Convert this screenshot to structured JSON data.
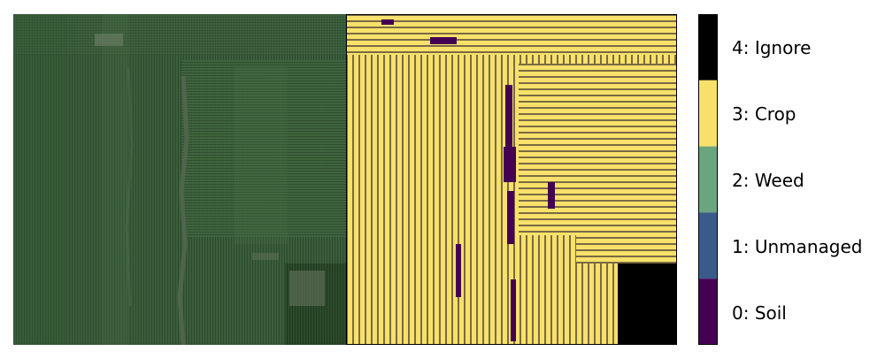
{
  "panels": {
    "left": {
      "content": "aerial RGB image of a crop field"
    },
    "right": {
      "content": "per-pixel semantic segmentation mask"
    }
  },
  "classes": [
    {
      "id": 0,
      "label": "0: Soil",
      "color": "#440154"
    },
    {
      "id": 1,
      "label": "1: Unmanaged",
      "color": "#3b5a8c"
    },
    {
      "id": 2,
      "label": "2: Weed",
      "color": "#6aa57d"
    },
    {
      "id": 3,
      "label": "3: Crop",
      "color": "#f7e16a"
    },
    {
      "id": 4,
      "label": "4: Ignore",
      "color": "#000000"
    }
  ]
}
